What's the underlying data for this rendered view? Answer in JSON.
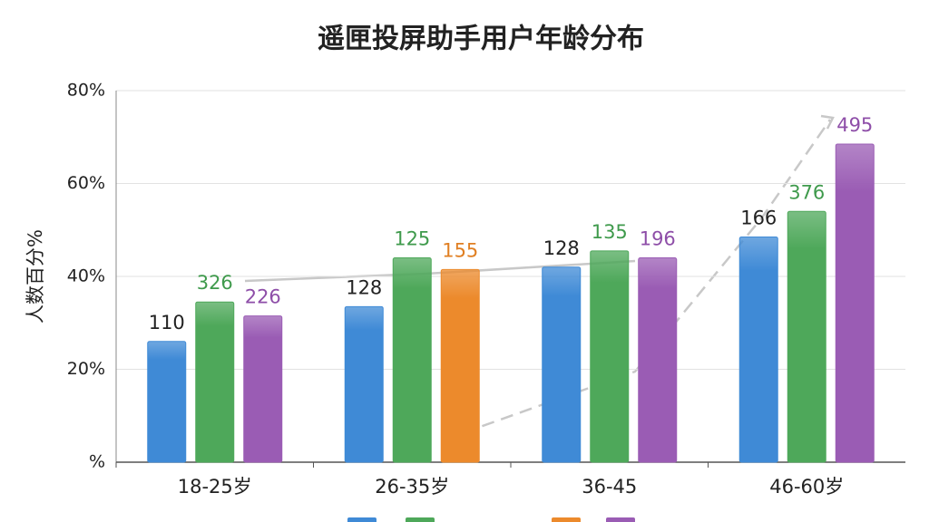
{
  "chart_data": {
    "type": "bar",
    "title": "遥匣投屏助手用户年龄分布",
    "y_label": "人数百分%",
    "categories": [
      "18-25岁",
      "26-35岁",
      "36-45",
      "46-60岁"
    ],
    "series": [
      {
        "color": "#3f8ad6",
        "label_color": "#222222",
        "values": [
          26,
          33.5,
          42,
          48.5
        ],
        "labels": [
          "110",
          "128",
          "128",
          "166"
        ]
      },
      {
        "color": "#4ea85a",
        "label_color": "#3f9a4c",
        "values": [
          34.5,
          44,
          45.5,
          54
        ],
        "labels": [
          "326",
          "125",
          "135",
          "376"
        ]
      },
      {
        "color": "#ec8a2c",
        "label_color": "#e07f22",
        "values": [
          null,
          41.5,
          null,
          null
        ],
        "labels": [
          null,
          "155",
          null,
          null
        ]
      },
      {
        "color": "#9a5cb4",
        "label_color": "#8e4ea8",
        "values": [
          31.5,
          null,
          44,
          68.5
        ],
        "labels": [
          "226",
          null,
          "196",
          "495"
        ]
      }
    ],
    "ylim": [
      0,
      80
    ],
    "yticks": [
      {
        "value": 0,
        "label": "%"
      },
      {
        "value": 20,
        "label": "20%"
      },
      {
        "value": 40,
        "label": "40%"
      },
      {
        "value": 60,
        "label": "60%"
      },
      {
        "value": 80,
        "label": "80%"
      }
    ],
    "grid": true
  }
}
